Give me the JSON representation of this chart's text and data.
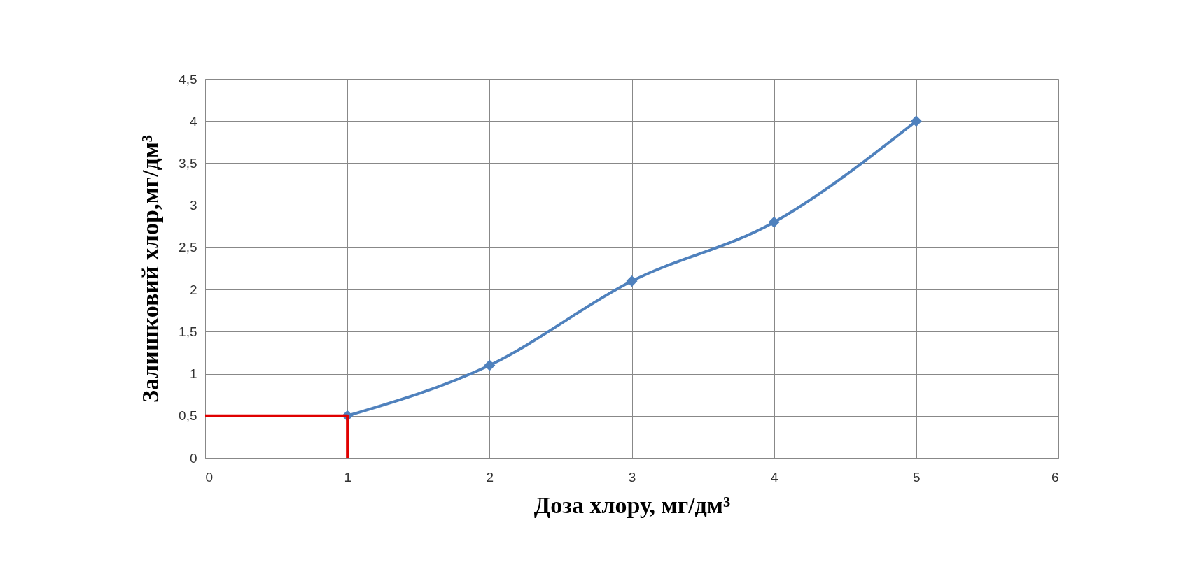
{
  "chart_data": {
    "type": "line",
    "xlabel": "Доза хлору, мг/дм³",
    "ylabel": "Залишковий хлор,мг/дм³",
    "xlim": [
      0,
      6
    ],
    "xticks": [
      0,
      1,
      2,
      3,
      4,
      5,
      6
    ],
    "ylim": [
      0,
      4.5
    ],
    "yticks": [
      0,
      {
        "value": 0.5,
        "label": "0,5"
      },
      1,
      {
        "value": 1.5,
        "label": "1,5"
      },
      2,
      {
        "value": 2.5,
        "label": "2,5"
      },
      3,
      {
        "value": 3.5,
        "label": "3,5"
      },
      4,
      {
        "value": 4.5,
        "label": "4,5"
      }
    ],
    "grid": true,
    "series": [
      {
        "color": "#4f81bd",
        "x": [
          1,
          2,
          3,
          4,
          5
        ],
        "values": [
          0.5,
          1.1,
          2.1,
          2.8,
          4.0
        ],
        "marker": "diamond",
        "line_style": "solid"
      },
      {
        "color": "#e00000",
        "x": [
          0,
          1,
          1
        ],
        "values": [
          0.5,
          0.5,
          0
        ],
        "marker": "none",
        "line_style": "solid"
      }
    ]
  }
}
